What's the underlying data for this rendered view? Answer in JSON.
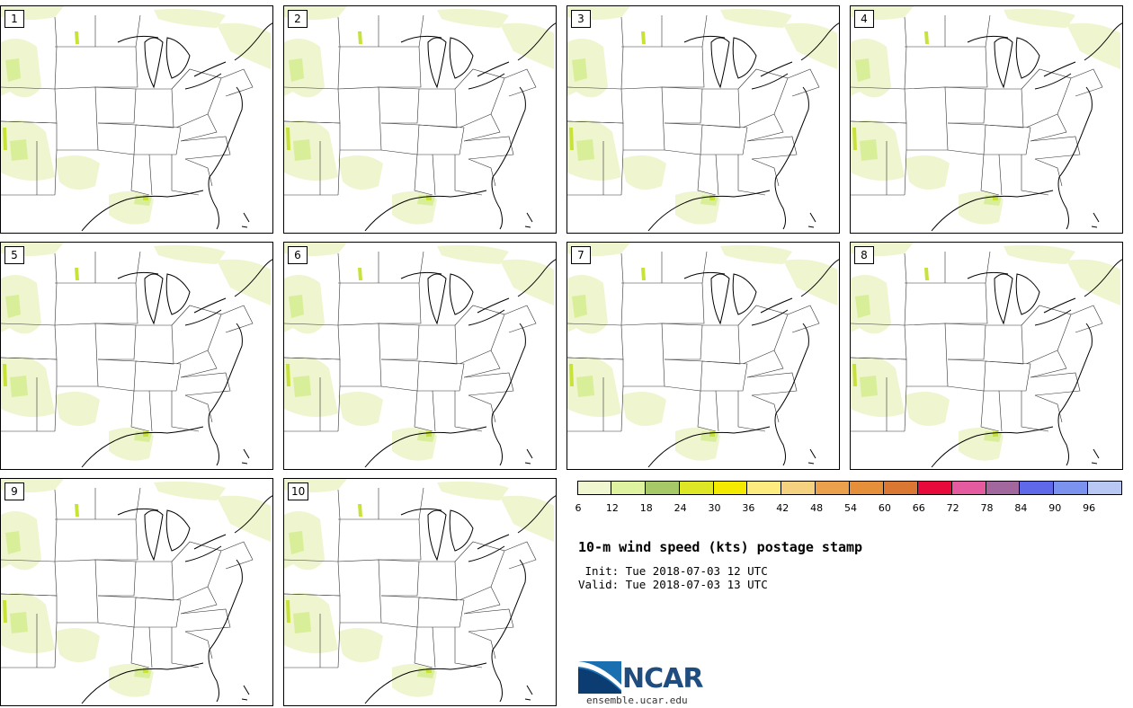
{
  "panels": [
    {
      "label": "1"
    },
    {
      "label": "2"
    },
    {
      "label": "3"
    },
    {
      "label": "4"
    },
    {
      "label": "5"
    },
    {
      "label": "6"
    },
    {
      "label": "7"
    },
    {
      "label": "8"
    },
    {
      "label": "9"
    },
    {
      "label": "10"
    }
  ],
  "colorbar": {
    "ticks": [
      "6",
      "12",
      "18",
      "24",
      "30",
      "36",
      "42",
      "48",
      "54",
      "60",
      "66",
      "72",
      "78",
      "84",
      "90",
      "96"
    ],
    "colors": [
      "#f0f7d0",
      "#dff2a0",
      "#a6c867",
      "#dde726",
      "#f4ea00",
      "#ffec80",
      "#f5d27f",
      "#eba14b",
      "#e68f3a",
      "#d97733",
      "#e80a3b",
      "#e55ba0",
      "#a2679d",
      "#5e68e8",
      "#7b92ef",
      "#b8c7f3"
    ]
  },
  "title": "10-m wind speed (kts) postage stamp",
  "init": " Init: Tue 2018-07-03 12 UTC",
  "valid": "Valid: Tue 2018-07-03 13 UTC",
  "logo": {
    "word": "NCAR",
    "url": "ensemble.ucar.edu",
    "colors": [
      "#1a6fb0",
      "#0b3d73"
    ]
  },
  "map_colors": {
    "light_green": "#eef5cf",
    "mid_green": "#d9ee98",
    "yellow_green": "#c9e23a",
    "border": "#333333"
  }
}
